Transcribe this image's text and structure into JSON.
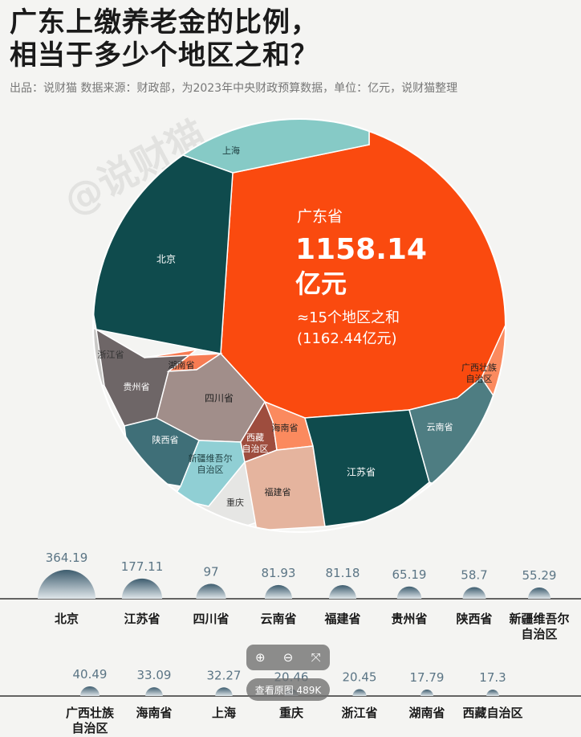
{
  "header": {
    "title_line1": "广东上缴养老金的比例，",
    "title_line2": "相当于多少个地区之和？",
    "subtitle": "出品：说财猫   数据来源：财政部，为2023年中央财政预算数据，单位：亿元，说财猫整理"
  },
  "watermark": "@说财猫",
  "colors": {
    "guangdong": "#fa4a0f",
    "shanghai": "#86cac6",
    "beijing": "#0f4b4d",
    "zhejiang": "#c9c8c6",
    "guizhou": "#6e6667",
    "hunan": "#f77c53",
    "sichuan": "#a18e8a",
    "shaanxi": "#3f6f78",
    "xinjiang": "#90cfd4",
    "chongqing": "#e6e6e4",
    "xizang": "#9e4d3e",
    "hainan": "#fb8a5e",
    "fujian": "#e5b49e",
    "jiangsu": "#0f4b4d",
    "yunnan": "#4e7d82",
    "guangxi": "#fb8a5e",
    "bubble_dark": "#3d5c6e",
    "bubble_light": "#dfe6ea"
  },
  "chart_data": [
    {
      "type": "voronoi-treemap",
      "highlight": {
        "name": "广东省",
        "value_text": "1158.14",
        "unit": "亿元",
        "note1": "≈15个地区之和",
        "note2": "(1162.44亿元)"
      },
      "cells": [
        {
          "name": "上海"
        },
        {
          "name": "北京"
        },
        {
          "name": "浙江省"
        },
        {
          "name": "贵州省"
        },
        {
          "name": "湖南省"
        },
        {
          "name": "四川省"
        },
        {
          "name": "陕西省"
        },
        {
          "name": "新疆维吾尔自治区",
          "lines": [
            "新疆维吾尔",
            "自治区"
          ]
        },
        {
          "name": "重庆"
        },
        {
          "name": "西藏自治区",
          "lines": [
            "西藏",
            "自治区"
          ]
        },
        {
          "name": "海南省"
        },
        {
          "name": "福建省"
        },
        {
          "name": "江苏省"
        },
        {
          "name": "云南省"
        },
        {
          "name": "广西壮族自治区",
          "lines": [
            "广西壮族",
            "自治区"
          ]
        }
      ]
    },
    {
      "type": "bubble",
      "rows": [
        [
          {
            "name": "北京",
            "value": 364.19
          },
          {
            "name": "江苏省",
            "value": 177.11
          },
          {
            "name": "四川省",
            "value": 97
          },
          {
            "name": "云南省",
            "value": 81.93
          },
          {
            "name": "福建省",
            "value": 81.18
          },
          {
            "name": "贵州省",
            "value": 65.19
          },
          {
            "name": "陕西省",
            "value": 58.7
          },
          {
            "name": "新疆维吾尔自治区",
            "lines": [
              "新疆维吾尔",
              "自治区"
            ],
            "value": 55.29
          }
        ],
        [
          {
            "name": "广西壮族自治区",
            "lines": [
              "广西壮族",
              "自治区"
            ],
            "value": 40.49
          },
          {
            "name": "海南省",
            "value": 33.09
          },
          {
            "name": "上海",
            "value": 32.27
          },
          {
            "name": "重庆",
            "value": 20.46
          },
          {
            "name": "浙江省",
            "value": 20.45
          },
          {
            "name": "湖南省",
            "value": 17.79
          },
          {
            "name": "西藏自治区",
            "value": 17.3
          }
        ]
      ]
    }
  ],
  "viewer": {
    "zoom_in": "⊕",
    "zoom_out": "⊖",
    "fit": "⤧",
    "view_original": "查看原图 489K"
  }
}
